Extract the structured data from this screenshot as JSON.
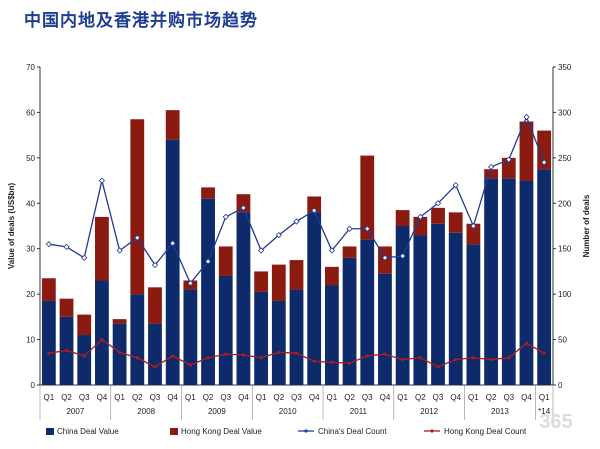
{
  "title": "中国内地及香港并购市场趋势",
  "chart_data": {
    "type": "bar",
    "stacked": true,
    "title": "中国内地及香港并购市场趋势",
    "ylabel_left": "Value of deals (US$bn)",
    "ylabel_right": "Number of deals",
    "ylim_left": [
      0,
      70
    ],
    "ylim_right": [
      0,
      350
    ],
    "yticks_left": [
      "0",
      "10",
      "20",
      "30",
      "40",
      "50",
      "60",
      "70"
    ],
    "yticks_right": [
      "0",
      "50",
      "100",
      "150",
      "200",
      "250",
      "300",
      "350"
    ],
    "quarters": [
      "Q1",
      "Q2",
      "Q3",
      "Q4",
      "Q1",
      "Q2",
      "Q3",
      "Q4",
      "Q1",
      "Q2",
      "Q3",
      "Q4",
      "Q1",
      "Q2",
      "Q3",
      "Q4",
      "Q1",
      "Q2",
      "Q3",
      "Q4",
      "Q1",
      "Q2",
      "Q3",
      "Q4",
      "Q1",
      "Q2",
      "Q3",
      "Q4",
      "Q1"
    ],
    "years": [
      {
        "label": "2007",
        "span": 4
      },
      {
        "label": "2008",
        "span": 4
      },
      {
        "label": "2009",
        "span": 4
      },
      {
        "label": "2010",
        "span": 4
      },
      {
        "label": "2011",
        "span": 4
      },
      {
        "label": "2012",
        "span": 4
      },
      {
        "label": "2013",
        "span": 4
      },
      {
        "label": "*14",
        "span": 1
      }
    ],
    "series": [
      {
        "name": "China Deal Value",
        "type": "bar",
        "axis": "left",
        "color": "#0d2a6b",
        "values": [
          18.5,
          15,
          11,
          23,
          13.5,
          20,
          13.5,
          54,
          21,
          41,
          24,
          38,
          20.5,
          18.5,
          21,
          38,
          22,
          28,
          32,
          24.5,
          35,
          33,
          35.5,
          33.5,
          31,
          45.5,
          45.5,
          45,
          47.5
        ]
      },
      {
        "name": "Hong Kong Deal Value",
        "type": "bar",
        "axis": "left",
        "color": "#8b1a10",
        "values": [
          5,
          4,
          4.5,
          14,
          1,
          38.5,
          8,
          6.5,
          2,
          2.5,
          6.5,
          4,
          4.5,
          8,
          6.5,
          3.5,
          4,
          2.5,
          18.5,
          6,
          3.5,
          4,
          3.5,
          4.5,
          4.5,
          2,
          4.5,
          13,
          8.5
        ]
      },
      {
        "name": "China's Deal Count",
        "type": "line",
        "axis": "right",
        "color": "#1f3d91",
        "values": [
          155,
          152,
          140,
          225,
          148,
          162,
          132,
          156,
          112,
          136,
          185,
          195,
          148,
          165,
          180,
          192,
          148,
          172,
          172,
          140,
          142,
          185,
          200,
          220,
          175,
          240,
          248,
          295,
          245
        ]
      },
      {
        "name": "Hong Kong Deal Count",
        "type": "line",
        "axis": "right",
        "color": "#b01c1c",
        "values": [
          35,
          38,
          32,
          50,
          36,
          30,
          20,
          32,
          22,
          30,
          34,
          33,
          30,
          36,
          35,
          26,
          25,
          24,
          32,
          34,
          28,
          30,
          20,
          28,
          30,
          28,
          30,
          46,
          35
        ]
      }
    ],
    "legend_position": "bottom",
    "watermark": "365"
  }
}
